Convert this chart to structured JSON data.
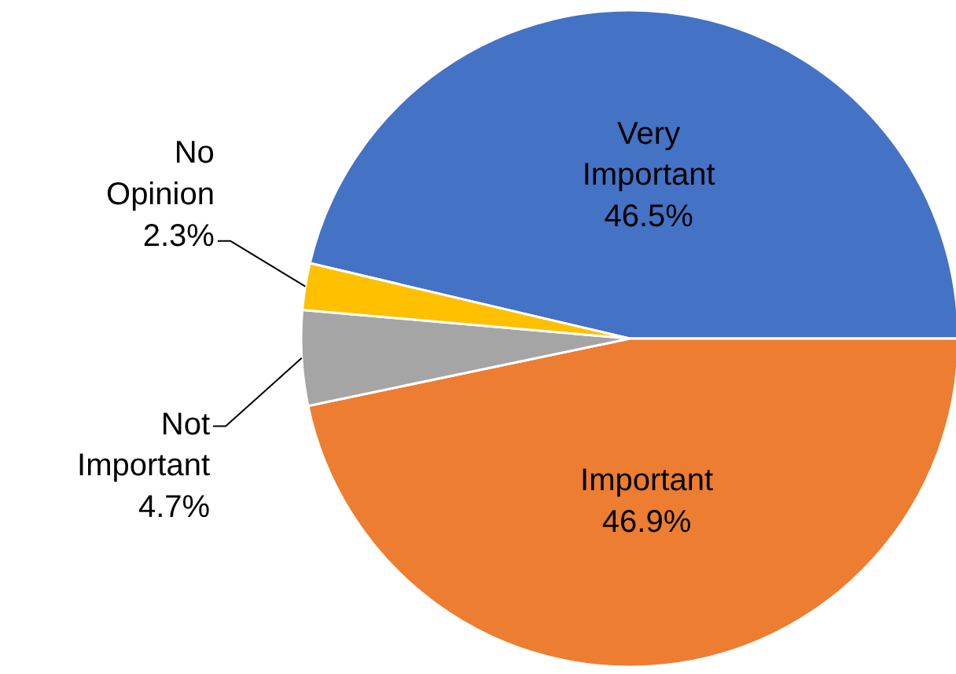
{
  "chart_data": {
    "type": "pie",
    "categories": [
      "Very Important",
      "Important",
      "Not Important",
      "No Opinion"
    ],
    "values": [
      46.5,
      46.9,
      4.7,
      2.3
    ],
    "colors": [
      "#4472c4",
      "#ed7d31",
      "#a5a5a5",
      "#ffc000"
    ],
    "value_labels": [
      "46.5%",
      "46.9%",
      "4.7%",
      "2.3%"
    ]
  }
}
